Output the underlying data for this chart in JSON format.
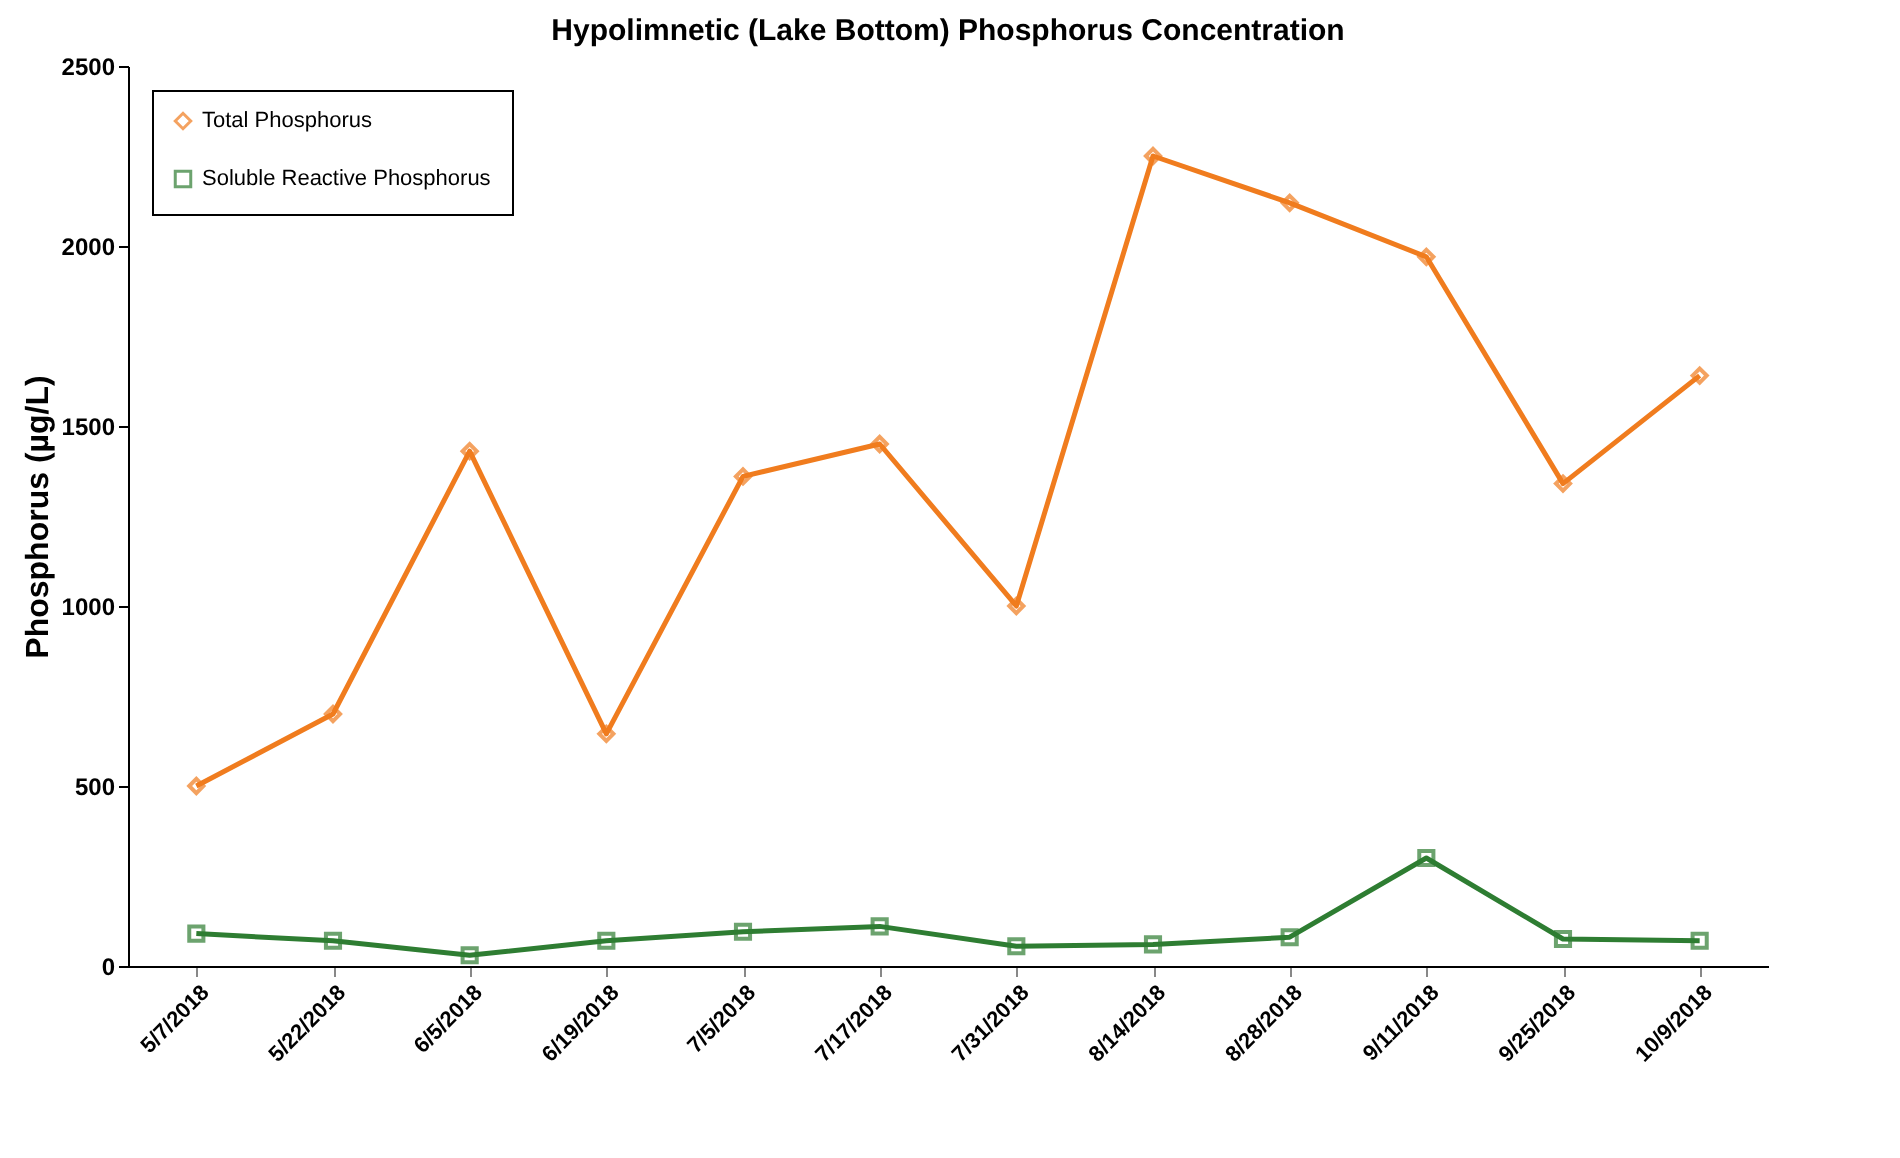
{
  "chart_data": {
    "type": "line",
    "title": "Hypolimnetic (Lake Bottom) Phosphorus  Concentration",
    "ylabel": "Phosphorus  (µg/L)",
    "categories": [
      "5/7/2018",
      "5/22/2018",
      "6/5/2018",
      "6/19/2018",
      "7/5/2018",
      "7/17/2018",
      "7/31/2018",
      "8/14/2018",
      "8/28/2018",
      "9/11/2018",
      "9/25/2018",
      "10/9/2018"
    ],
    "series": [
      {
        "name": "Total Phosphorus",
        "color": "#f07c1e",
        "marker": "diamond",
        "values": [
          500,
          700,
          1430,
          645,
          1360,
          1450,
          1000,
          2250,
          2120,
          1970,
          1340,
          1640
        ]
      },
      {
        "name": "Soluble Reactive Phosphorus",
        "color": "#2e7d32",
        "marker": "square",
        "values": [
          90,
          70,
          30,
          70,
          95,
          110,
          55,
          60,
          80,
          300,
          75,
          70
        ]
      }
    ],
    "ylim": [
      0,
      2500
    ],
    "yticks": [
      0,
      500,
      1000,
      1500,
      2000,
      2500
    ],
    "grid": false,
    "legend": "top left",
    "line_style": "solid"
  }
}
